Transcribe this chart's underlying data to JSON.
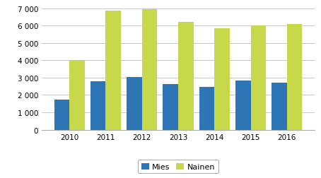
{
  "years": [
    2010,
    2011,
    2012,
    2013,
    2014,
    2015,
    2016
  ],
  "mies": [
    1750,
    2800,
    3050,
    2650,
    2450,
    2820,
    2720
  ],
  "nainen": [
    4000,
    6850,
    6950,
    6200,
    5850,
    6000,
    6100
  ],
  "color_mies": "#2e75b6",
  "color_nainen": "#c8d84b",
  "ylim": [
    0,
    7200
  ],
  "yticks": [
    0,
    1000,
    2000,
    3000,
    4000,
    5000,
    6000,
    7000
  ],
  "legend_labels": [
    "Mies",
    "Nainen"
  ],
  "bar_width": 0.42,
  "background_color": "#ffffff",
  "grid_color": "#c0c0c0"
}
